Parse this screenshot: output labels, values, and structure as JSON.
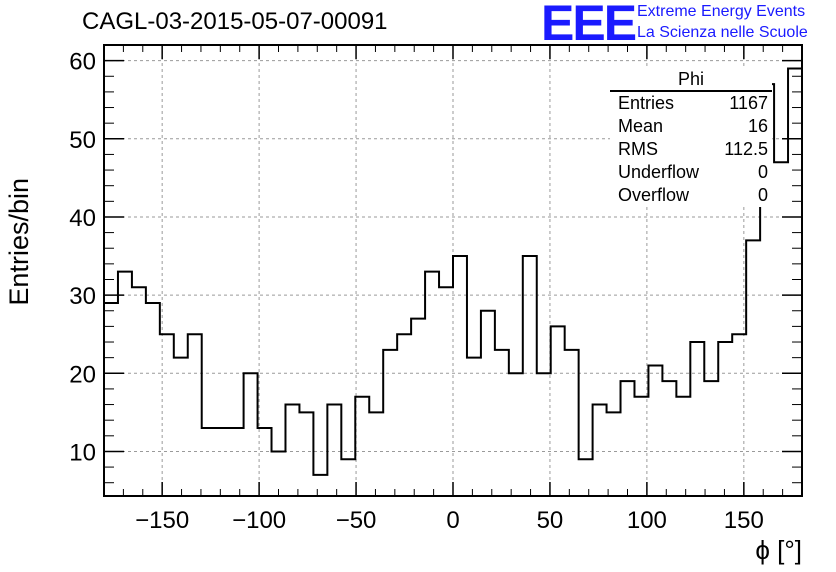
{
  "header": {
    "title": "CAGL-03-2015-05-07-00091",
    "logo_text": "EEE",
    "logo_line1": "Extreme Energy Events",
    "logo_line2": "La Scienza nelle Scuole"
  },
  "stats_box": {
    "title": "Phi",
    "rows": [
      {
        "label": "Entries",
        "value": "1167"
      },
      {
        "label": "Mean",
        "value": "16"
      },
      {
        "label": "RMS",
        "value": "112.5"
      },
      {
        "label": "Underflow",
        "value": "0"
      },
      {
        "label": "Overflow",
        "value": "0"
      }
    ]
  },
  "chart_data": {
    "type": "histogram",
    "title": "CAGL-03-2015-05-07-00091",
    "xlabel": "ϕ [°]",
    "ylabel": "Entries/bin",
    "xlim": [
      -180,
      180
    ],
    "ylim": [
      4.3,
      62
    ],
    "grid": true,
    "xticks": [
      -150,
      -100,
      -50,
      0,
      50,
      100,
      150
    ],
    "yticks": [
      10,
      20,
      30,
      40,
      50,
      60
    ],
    "bin_edges": [
      -180,
      -172.8,
      -165.6,
      -158.4,
      -151.2,
      -144,
      -136.8,
      -129.6,
      -122.4,
      -115.2,
      -108,
      -100.8,
      -93.6,
      -86.4,
      -79.2,
      -72,
      -64.8,
      -57.6,
      -50.4,
      -43.2,
      -36,
      -28.8,
      -21.6,
      -14.4,
      -7.2,
      0,
      7.2,
      14.4,
      21.6,
      28.8,
      36,
      43.2,
      50.4,
      57.6,
      64.8,
      72,
      79.2,
      86.4,
      93.6,
      100.8,
      108,
      115.2,
      122.4,
      129.6,
      136.8,
      144,
      151.2,
      158.4,
      165.6,
      172.8,
      180
    ],
    "values": [
      29,
      33,
      31,
      29,
      25,
      22,
      25,
      13,
      13,
      13,
      20,
      13,
      10,
      16,
      15,
      7,
      16,
      9,
      17,
      15,
      23,
      25,
      27,
      33,
      31,
      35,
      22,
      28,
      23,
      20,
      35,
      20,
      26,
      23,
      9,
      16,
      15,
      19,
      17,
      21,
      19,
      17,
      24,
      19,
      24,
      25,
      37,
      57,
      47,
      59
    ],
    "line_color": "#000000",
    "grid_color": "#9a9a9a"
  }
}
